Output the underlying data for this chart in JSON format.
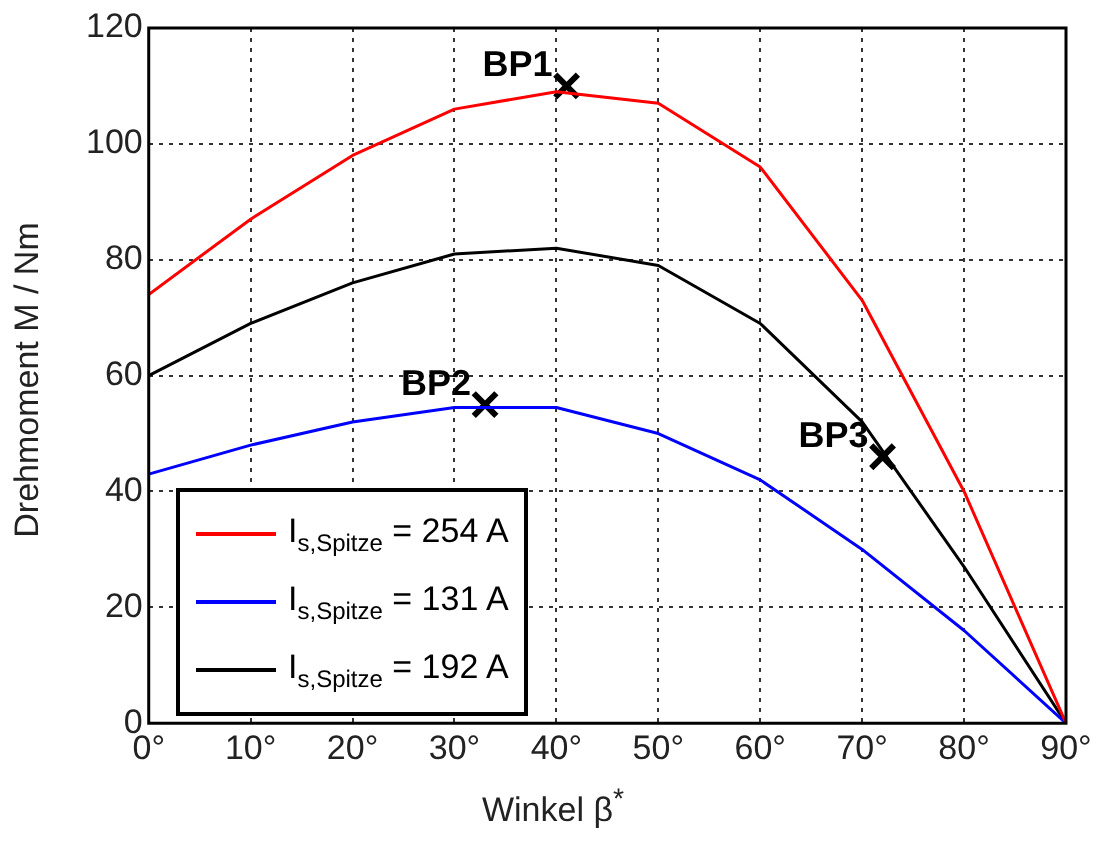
{
  "chart_data": {
    "type": "line",
    "xlabel": "Winkel β$^{*}$",
    "ylabel": "Drehmoment M / Nm",
    "x": [
      0,
      10,
      20,
      30,
      40,
      50,
      60,
      70,
      80,
      90
    ],
    "series": [
      {
        "name": "I$_{s,Spitze}$ = 254 A",
        "color": "#ff0000",
        "values": [
          74,
          87,
          98,
          106,
          109,
          107,
          96,
          73,
          40,
          0
        ]
      },
      {
        "name": "I$_{s,Spitze}$ = 131 A",
        "color": "#0000ff",
        "values": [
          43,
          48,
          52,
          54.5,
          54.5,
          50,
          42,
          30,
          16,
          0
        ]
      },
      {
        "name": "I$_{s,Spitze}$ = 192 A",
        "color": "#000000",
        "values": [
          60,
          69,
          76,
          81,
          82,
          79,
          69,
          52,
          27,
          0
        ]
      },
      {
        "type": "scatter",
        "color": "#000000",
        "marker": "cross",
        "x": [
          41,
          33,
          72
        ],
        "values": [
          110,
          55,
          46
        ]
      }
    ],
    "xlim": [
      0,
      90
    ],
    "xticks": [
      {
        "value": 0,
        "label": "0°"
      },
      {
        "value": 10,
        "label": "10°"
      },
      {
        "value": 20,
        "label": "20°"
      },
      {
        "value": 30,
        "label": "30°"
      },
      {
        "value": 40,
        "label": "40°"
      },
      {
        "value": 50,
        "label": "50°"
      },
      {
        "value": 60,
        "label": "60°"
      },
      {
        "value": 70,
        "label": "70°"
      },
      {
        "value": 80,
        "label": "80°"
      },
      {
        "value": 90,
        "label": "90°"
      }
    ],
    "ylim": [
      0,
      120
    ],
    "yticks": [
      0,
      20,
      40,
      60,
      80,
      100,
      120
    ],
    "annotations": [
      {
        "text": "BP1",
        "x": 41,
        "y": 110
      },
      {
        "text": "BP2",
        "x": 33,
        "y": 55
      },
      {
        "text": "BP3",
        "x": 72,
        "y": 46
      }
    ],
    "grid": true,
    "legend": "bottom left",
    "marker": "none",
    "line_style": "solid"
  }
}
